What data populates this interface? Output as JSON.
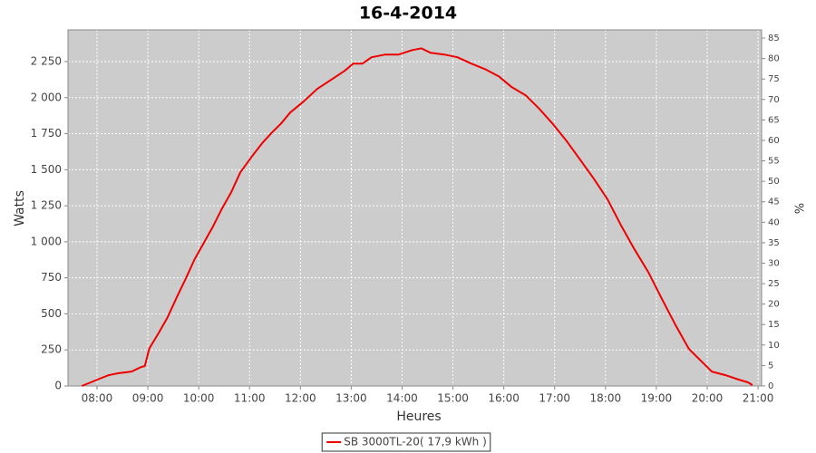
{
  "chart_data": {
    "type": "line",
    "title": "16-4-2014",
    "x_label": "Heures",
    "y_label": "Watts",
    "y2_label": "%",
    "grid": true,
    "legend": "bottom",
    "x": [
      7.7,
      7.88,
      8.05,
      8.23,
      8.41,
      8.68,
      8.86,
      8.94,
      9.03,
      9.21,
      9.39,
      9.57,
      9.75,
      9.92,
      10.1,
      10.28,
      10.46,
      10.64,
      10.82,
      11.08,
      11.26,
      11.44,
      11.62,
      11.8,
      12.06,
      12.33,
      12.6,
      12.87,
      13.04,
      13.22,
      13.4,
      13.67,
      13.93,
      14.2,
      14.38,
      14.56,
      14.83,
      15.09,
      15.36,
      15.63,
      15.9,
      16.16,
      16.43,
      16.7,
      16.97,
      17.23,
      17.5,
      17.77,
      18.04,
      18.3,
      18.57,
      18.84,
      19.11,
      19.37,
      19.64,
      19.91,
      20.09,
      20.36,
      20.62,
      20.8,
      20.89
    ],
    "series": [
      {
        "name": "SB 3000TL-20( 17,9 kWh )",
        "color": "#ee0000",
        "values": [
          0,
          25,
          50,
          75,
          88,
          100,
          130,
          138,
          260,
          365,
          477,
          615,
          747,
          880,
          992,
          1105,
          1231,
          1344,
          1482,
          1608,
          1689,
          1758,
          1821,
          1897,
          1972,
          2060,
          2123,
          2186,
          2236,
          2236,
          2280,
          2299,
          2299,
          2330,
          2342,
          2311,
          2299,
          2280,
          2236,
          2198,
          2148,
          2072,
          2016,
          1922,
          1815,
          1702,
          1570,
          1438,
          1294,
          1118,
          948,
          791,
          603,
          427,
          257,
          163,
          100,
          75,
          44,
          25,
          6
        ]
      }
    ],
    "xlim": [
      7.43,
      21.07
    ],
    "xticks": [
      {
        "value": 8,
        "label": "08:00"
      },
      {
        "value": 9,
        "label": "09:00"
      },
      {
        "value": 10,
        "label": "10:00"
      },
      {
        "value": 11,
        "label": "11:00"
      },
      {
        "value": 12,
        "label": "12:00"
      },
      {
        "value": 13,
        "label": "13:00"
      },
      {
        "value": 14,
        "label": "14:00"
      },
      {
        "value": 15,
        "label": "15:00"
      },
      {
        "value": 16,
        "label": "16:00"
      },
      {
        "value": 17,
        "label": "17:00"
      },
      {
        "value": 18,
        "label": "18:00"
      },
      {
        "value": 19,
        "label": "19:00"
      },
      {
        "value": 20,
        "label": "20:00"
      },
      {
        "value": 21,
        "label": "21:00"
      }
    ],
    "ylim": [
      0,
      2470
    ],
    "yticks": [
      0,
      250,
      500,
      750,
      {
        "value": 1000,
        "label": "1 000"
      },
      {
        "value": 1250,
        "label": "1 250"
      },
      {
        "value": 1500,
        "label": "1 500"
      },
      {
        "value": 1750,
        "label": "1 750"
      },
      {
        "value": 2000,
        "label": "2 000"
      },
      {
        "value": 2250,
        "label": "2 250"
      }
    ],
    "y2lim": [
      0,
      87
    ],
    "y2ticks": [
      0,
      5,
      10,
      15,
      20,
      25,
      30,
      35,
      40,
      45,
      50,
      55,
      60,
      65,
      70,
      75,
      80,
      85
    ]
  }
}
